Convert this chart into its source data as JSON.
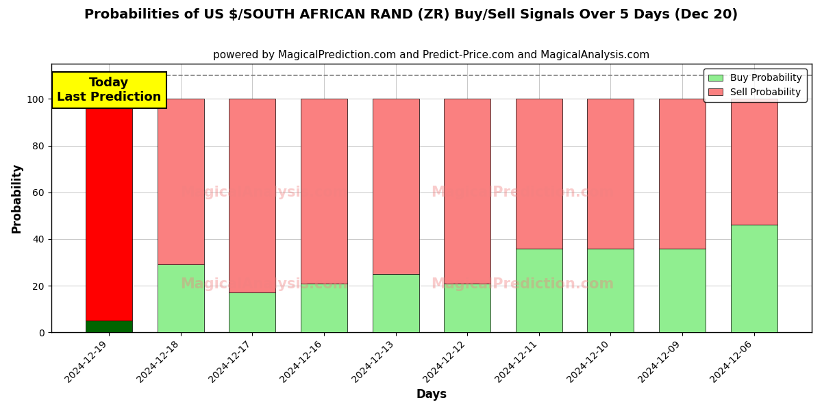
{
  "title": "Probabilities of US $/SOUTH AFRICAN RAND (ZR) Buy/Sell Signals Over 5 Days (Dec 20)",
  "subtitle": "powered by MagicalPrediction.com and Predict-Price.com and MagicalAnalysis.com",
  "xlabel": "Days",
  "ylabel": "Probability",
  "dates": [
    "2024-12-19",
    "2024-12-18",
    "2024-12-17",
    "2024-12-16",
    "2024-12-13",
    "2024-12-12",
    "2024-12-11",
    "2024-12-10",
    "2024-12-09",
    "2024-12-06"
  ],
  "buy_values": [
    5,
    29,
    17,
    21,
    25,
    21,
    36,
    36,
    36,
    46
  ],
  "sell_values": [
    95,
    71,
    83,
    79,
    75,
    79,
    64,
    64,
    64,
    54
  ],
  "buy_color_today": "#006400",
  "buy_color_rest": "#90EE90",
  "sell_color_today": "#FF0000",
  "sell_color_rest": "#FA8080",
  "legend_buy_color": "#90EE90",
  "legend_sell_color": "#FA8080",
  "ylim": [
    0,
    115
  ],
  "dashed_line_y": 110,
  "annotation_text": "Today\nLast Prediction",
  "annotation_bg": "#FFFF00",
  "bar_width": 0.65,
  "title_fontsize": 14,
  "subtitle_fontsize": 11,
  "axis_label_fontsize": 12,
  "tick_fontsize": 10,
  "fig_width": 12.0,
  "fig_height": 6.0,
  "dpi": 100
}
